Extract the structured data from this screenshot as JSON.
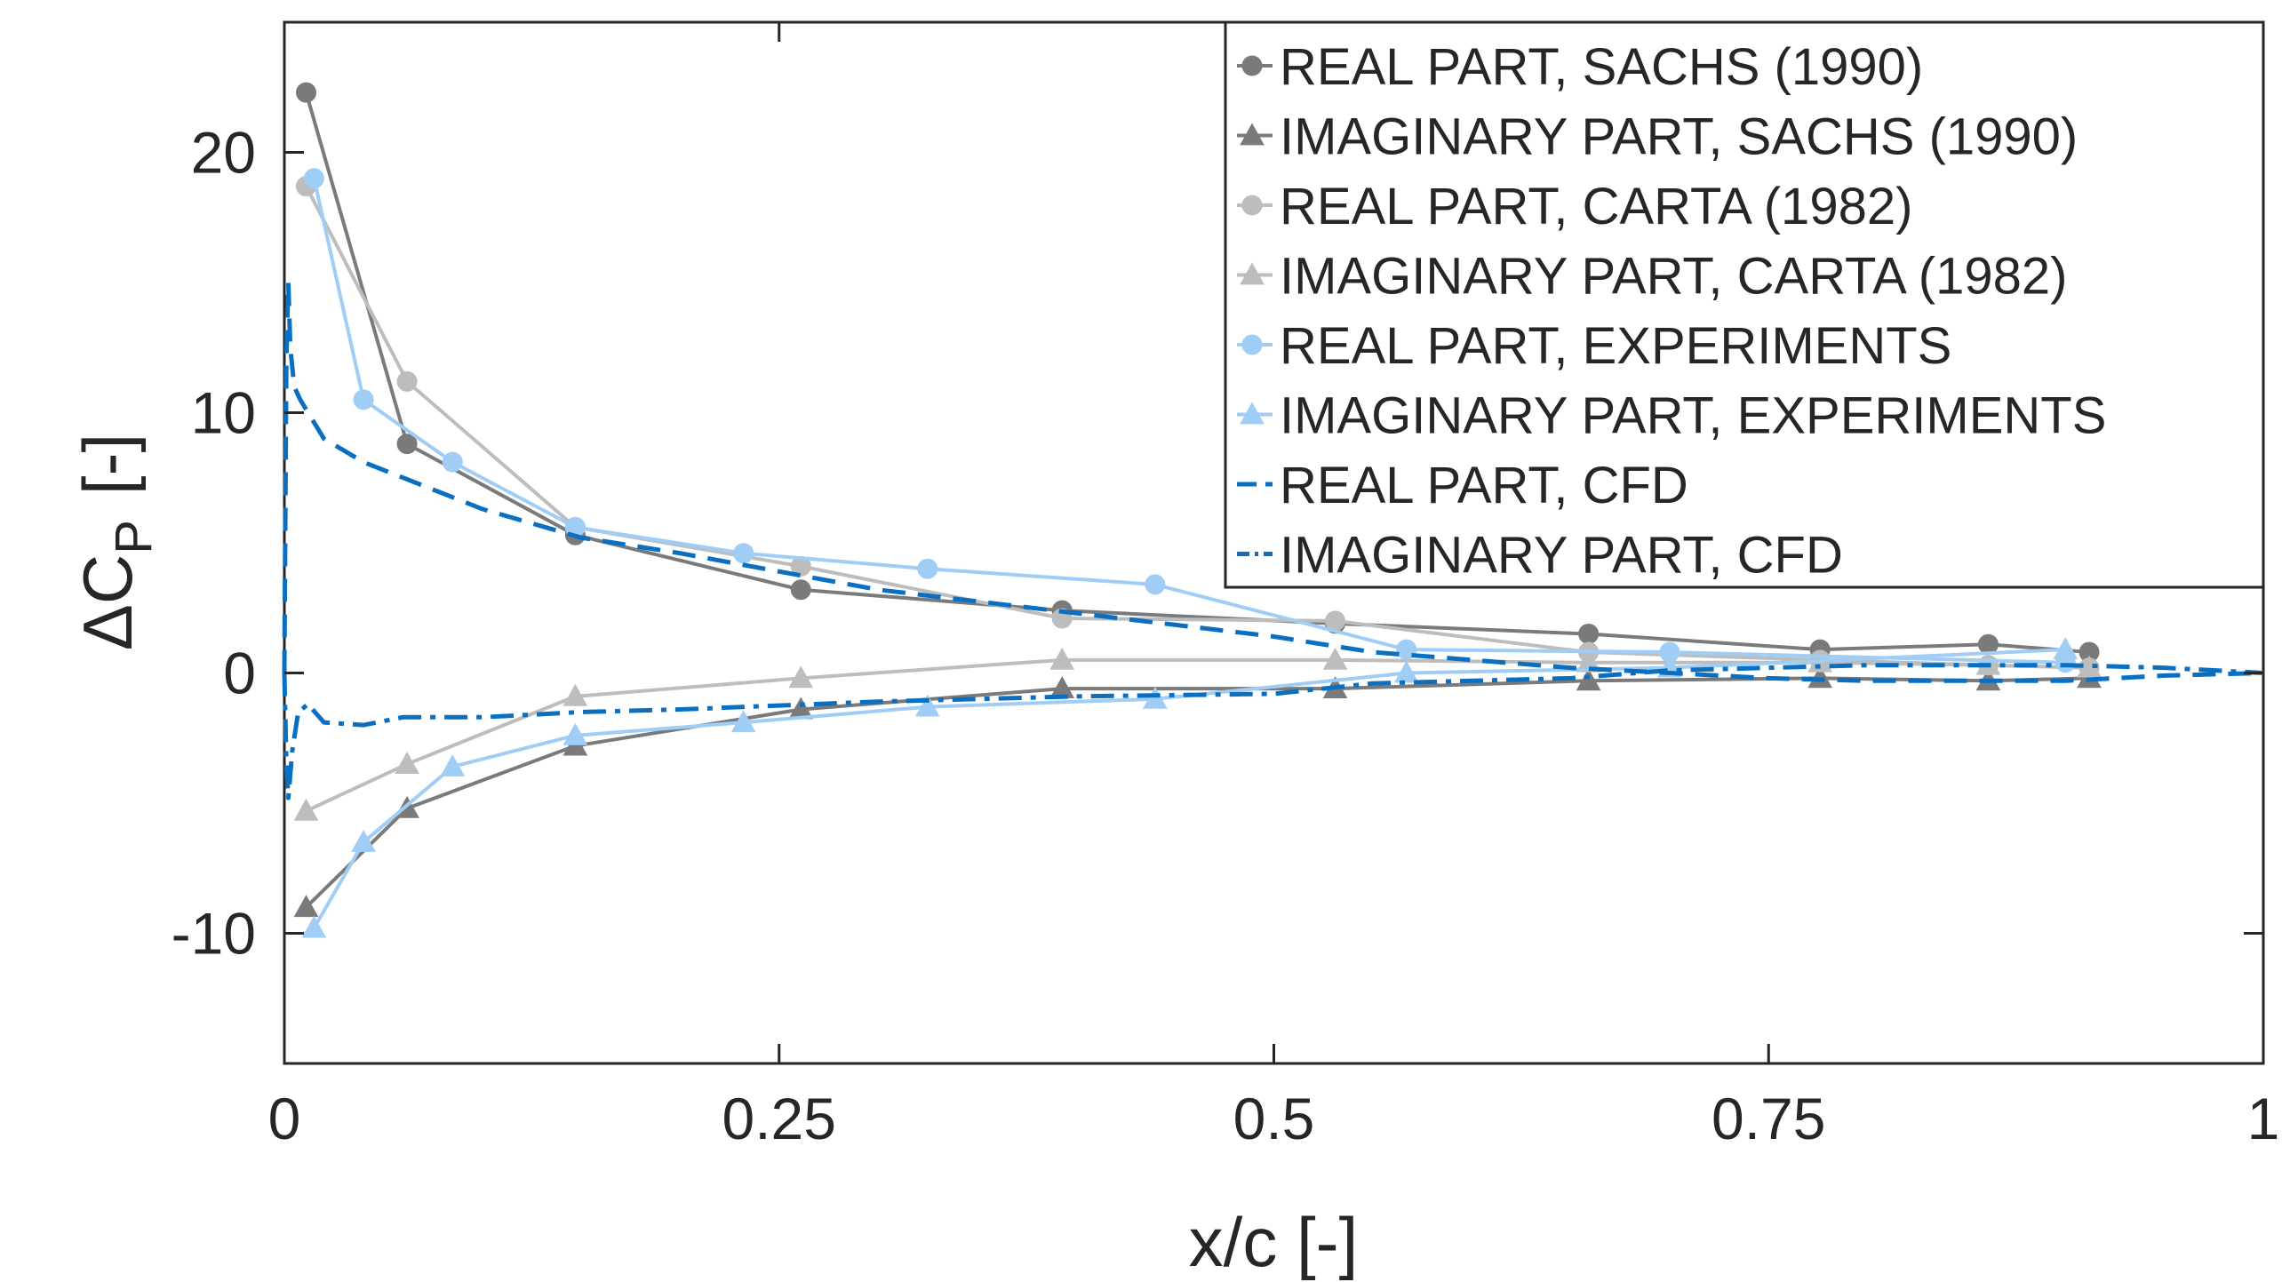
{
  "chart_data": {
    "type": "line",
    "title": "",
    "xlabel": "x/c  [-]",
    "ylabel_main": "ΔC",
    "ylabel_sub": "P",
    "ylabel_unit": "[-]",
    "xlim": [
      0,
      1
    ],
    "ylim": [
      -15,
      25
    ],
    "xticks": [
      0,
      0.25,
      0.5,
      0.75,
      1
    ],
    "xtick_labels": [
      "0",
      "0.25",
      "0.5",
      "0.75",
      "1"
    ],
    "yticks": [
      -10,
      0,
      10,
      20
    ],
    "ytick_labels": [
      "-10",
      "0",
      "10",
      "20"
    ],
    "grid": false,
    "legend_position": "top-right",
    "series": [
      {
        "name": "REAL PART, SACHS (1990)",
        "color": "#7a7a7a",
        "marker": "circle",
        "style": "solid",
        "x": [
          0.011,
          0.062,
          0.147,
          0.261,
          0.393,
          0.531,
          0.659,
          0.776,
          0.861,
          0.912
        ],
        "y": [
          22.3,
          8.8,
          5.3,
          3.2,
          2.4,
          1.9,
          1.5,
          0.9,
          1.1,
          0.8
        ]
      },
      {
        "name": "IMAGINARY PART, SACHS (1990)",
        "color": "#7a7a7a",
        "marker": "triangle",
        "style": "solid",
        "x": [
          0.011,
          0.062,
          0.147,
          0.261,
          0.393,
          0.531,
          0.659,
          0.776,
          0.861,
          0.912
        ],
        "y": [
          -9.0,
          -5.2,
          -2.8,
          -1.4,
          -0.6,
          -0.6,
          -0.3,
          -0.2,
          -0.3,
          -0.2
        ]
      },
      {
        "name": "REAL PART, CARTA (1982)",
        "color": "#bdbdbd",
        "marker": "circle",
        "style": "solid",
        "x": [
          0.011,
          0.062,
          0.147,
          0.261,
          0.393,
          0.531,
          0.659,
          0.776,
          0.861,
          0.912
        ],
        "y": [
          18.7,
          11.2,
          5.6,
          4.1,
          2.1,
          2.0,
          0.8,
          0.5,
          0.3,
          0.2
        ]
      },
      {
        "name": "IMAGINARY PART, CARTA (1982)",
        "color": "#bdbdbd",
        "marker": "triangle",
        "style": "solid",
        "x": [
          0.011,
          0.062,
          0.147,
          0.261,
          0.393,
          0.531,
          0.659,
          0.776,
          0.861,
          0.912
        ],
        "y": [
          -5.3,
          -3.5,
          -0.9,
          -0.2,
          0.5,
          0.5,
          0.4,
          0.4,
          0.3,
          0.2
        ]
      },
      {
        "name": "REAL PART, EXPERIMENTS",
        "color": "#9fcdf6",
        "marker": "circle",
        "style": "solid",
        "x": [
          0.015,
          0.04,
          0.085,
          0.147,
          0.232,
          0.325,
          0.44,
          0.567,
          0.7,
          0.9
        ],
        "y": [
          19.0,
          10.5,
          8.1,
          5.6,
          4.6,
          4.0,
          3.4,
          0.9,
          0.8,
          0.4
        ]
      },
      {
        "name": "IMAGINARY PART, EXPERIMENTS",
        "color": "#9fcdf6",
        "marker": "triangle",
        "style": "solid",
        "x": [
          0.015,
          0.04,
          0.085,
          0.147,
          0.232,
          0.325,
          0.44,
          0.567,
          0.7,
          0.9
        ],
        "y": [
          -9.8,
          -6.5,
          -3.6,
          -2.4,
          -1.9,
          -1.3,
          -1.0,
          0.0,
          0.2,
          0.9
        ]
      },
      {
        "name": "REAL PART, CFD",
        "color": "#0a6fc0",
        "marker": "none",
        "style": "dashed",
        "x": [
          0.0,
          0.001,
          0.002,
          0.003,
          0.005,
          0.008,
          0.012,
          0.02,
          0.04,
          0.07,
          0.1,
          0.15,
          0.2,
          0.3,
          0.4,
          0.5,
          0.55,
          0.6,
          0.65,
          0.7,
          0.75,
          0.8,
          0.85,
          0.9,
          0.95,
          1.0
        ],
        "y": [
          0.0,
          12.0,
          15.0,
          12.5,
          11.0,
          10.5,
          10.0,
          9.0,
          8.1,
          7.2,
          6.3,
          5.2,
          4.6,
          3.2,
          2.3,
          1.4,
          0.8,
          0.5,
          0.2,
          0.0,
          -0.2,
          -0.3,
          -0.3,
          -0.3,
          -0.1,
          0.0
        ]
      },
      {
        "name": "IMAGINARY PART, CFD",
        "color": "#0a6fc0",
        "marker": "none",
        "style": "dashdot",
        "x": [
          0.0,
          0.001,
          0.002,
          0.004,
          0.007,
          0.012,
          0.02,
          0.04,
          0.06,
          0.1,
          0.15,
          0.2,
          0.3,
          0.4,
          0.5,
          0.55,
          0.6,
          0.65,
          0.7,
          0.75,
          0.8,
          0.85,
          0.9,
          0.95,
          1.0
        ],
        "y": [
          0.0,
          -3.5,
          -4.8,
          -3.0,
          -1.5,
          -1.2,
          -1.9,
          -2.0,
          -1.7,
          -1.7,
          -1.5,
          -1.4,
          -1.1,
          -0.9,
          -0.8,
          -0.4,
          -0.3,
          -0.2,
          0.1,
          0.2,
          0.3,
          0.3,
          0.3,
          0.2,
          0.0
        ]
      }
    ]
  }
}
